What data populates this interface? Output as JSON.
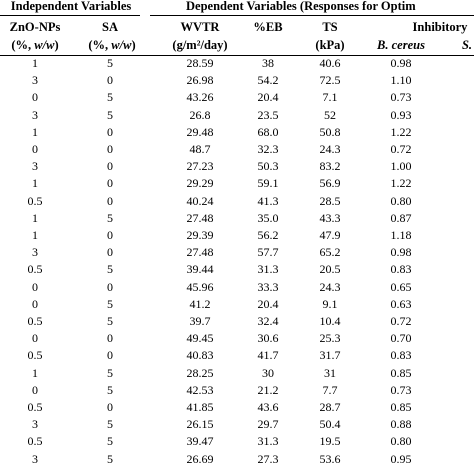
{
  "header": {
    "group_independent": "Independent Variables",
    "group_dependent": "Dependent Variables (Responses for Optim",
    "col_zno": "ZnO-NPs",
    "col_sa": "SA",
    "col_wvtr": "WVTR",
    "col_eb": "%EB",
    "col_ts": "TS",
    "col_inhib": "Inhibitory",
    "unit_zno": "(%, w/w)",
    "unit_sa": "(%, w/w)",
    "unit_wvtr": "(g/m²/day)",
    "unit_ts": "(kPa)",
    "unit_bc": "B. cereus",
    "unit_s": "S."
  },
  "rows": [
    [
      "1",
      "5",
      "28.59",
      "38",
      "40.6",
      "0.98"
    ],
    [
      "3",
      "0",
      "26.98",
      "54.2",
      "72.5",
      "1.10"
    ],
    [
      "0",
      "5",
      "43.26",
      "20.4",
      "7.1",
      "0.73"
    ],
    [
      "3",
      "5",
      "26.8",
      "23.5",
      "52",
      "0.93"
    ],
    [
      "1",
      "0",
      "29.48",
      "68.0",
      "50.8",
      "1.22"
    ],
    [
      "0",
      "0",
      "48.7",
      "32.3",
      "24.3",
      "0.72"
    ],
    [
      "3",
      "0",
      "27.23",
      "50.3",
      "83.2",
      "1.00"
    ],
    [
      "1",
      "0",
      "29.29",
      "59.1",
      "56.9",
      "1.22"
    ],
    [
      "0.5",
      "0",
      "40.24",
      "41.3",
      "28.5",
      "0.80"
    ],
    [
      "1",
      "5",
      "27.48",
      "35.0",
      "43.3",
      "0.87"
    ],
    [
      "1",
      "0",
      "29.39",
      "56.2",
      "47.9",
      "1.18"
    ],
    [
      "3",
      "0",
      "27.48",
      "57.7",
      "65.2",
      "0.98"
    ],
    [
      "0.5",
      "5",
      "39.44",
      "31.3",
      "20.5",
      "0.83"
    ],
    [
      "0",
      "0",
      "45.96",
      "33.3",
      "24.3",
      "0.65"
    ],
    [
      "0",
      "5",
      "41.2",
      "20.4",
      "9.1",
      "0.63"
    ],
    [
      "0.5",
      "5",
      "39.7",
      "32.4",
      "10.4",
      "0.72"
    ],
    [
      "0",
      "0",
      "49.45",
      "30.6",
      "25.3",
      "0.70"
    ],
    [
      "0.5",
      "0",
      "40.83",
      "41.7",
      "31.7",
      "0.83"
    ],
    [
      "1",
      "5",
      "28.25",
      "30",
      "31",
      "0.85"
    ],
    [
      "0",
      "5",
      "42.53",
      "21.2",
      "7.7",
      "0.73"
    ],
    [
      "0.5",
      "0",
      "41.85",
      "43.6",
      "28.7",
      "0.85"
    ],
    [
      "3",
      "5",
      "26.15",
      "29.7",
      "50.4",
      "0.88"
    ],
    [
      "0.5",
      "5",
      "39.47",
      "31.3",
      "19.5",
      "0.80"
    ],
    [
      "3",
      "5",
      "26.69",
      "27.3",
      "53.6",
      "0.95"
    ]
  ]
}
